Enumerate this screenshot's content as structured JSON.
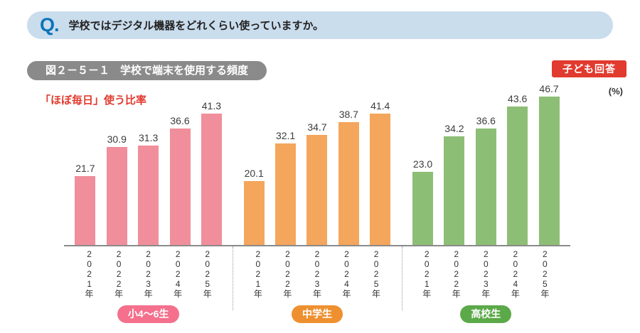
{
  "question_banner": {
    "q_label": "Q.",
    "text": "学校ではデジタル機器をどれくらい使っていますか。"
  },
  "figure_header": {
    "title": "図２－５－１　学校で端末を使用する頻度",
    "respondent_badge": "子ども回答"
  },
  "chart_meta": {
    "metric_label": "「ほぼ毎日」使う比率",
    "unit_label": "(%)"
  },
  "colors": {
    "banner_bg": "#cadded",
    "q_mark_blue": "#0c74ba",
    "title_bar_gray": "#8a8a8a",
    "accent_red": "#e13a2e",
    "axis_gray": "#8a8a8a"
  },
  "chart_data": {
    "type": "bar",
    "title": "学校で端末を使用する頻度（「ほぼ毎日」使う比率）",
    "xlabel": "年",
    "ylabel": "%",
    "ylim": [
      0,
      50
    ],
    "grid": false,
    "value_labels": true,
    "legend_position": "pills below each group",
    "categories": [
      "2021年",
      "2022年",
      "2023年",
      "2024年",
      "2025年"
    ],
    "series": [
      {
        "name": "小4～6生",
        "bar_color": "#f18e9b",
        "pill_color": "#f4708d",
        "values": [
          21.7,
          30.9,
          31.3,
          36.6,
          41.3
        ]
      },
      {
        "name": "中学生",
        "bar_color": "#f4a65c",
        "pill_color": "#ef9030",
        "values": [
          20.1,
          32.1,
          34.7,
          38.7,
          41.4
        ]
      },
      {
        "name": "高校生",
        "bar_color": "#8dbe76",
        "pill_color": "#5ba948",
        "values": [
          23.0,
          34.2,
          36.6,
          43.6,
          46.7
        ]
      }
    ]
  }
}
